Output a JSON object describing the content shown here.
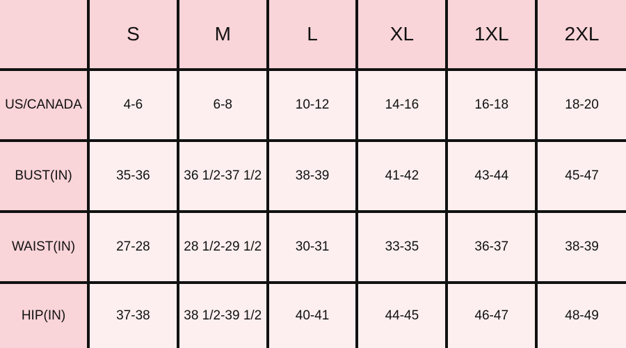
{
  "colors": {
    "header_bg": "#f9d4d8",
    "cell_bg": "#fdeff0",
    "border_gold": "#c99a2e"
  },
  "sizes": [
    "S",
    "M",
    "L",
    "XL",
    "1XL",
    "2XL"
  ],
  "rows": [
    {
      "label": "US/CANADA",
      "values": [
        "4-6",
        "6-8",
        "10-12",
        "14-16",
        "16-18",
        "18-20"
      ]
    },
    {
      "label": "BUST(IN)",
      "values": [
        "35-36",
        "36 1/2-37 1/2",
        "38-39",
        "41-42",
        "43-44",
        "45-47"
      ]
    },
    {
      "label": "WAIST(IN)",
      "values": [
        "27-28",
        "28 1/2-29 1/2",
        "30-31",
        "33-35",
        "36-37",
        "38-39"
      ]
    },
    {
      "label": "HIP(IN)",
      "values": [
        "37-38",
        "38 1/2-39 1/2",
        "40-41",
        "44-45",
        "46-47",
        "48-49"
      ]
    }
  ]
}
